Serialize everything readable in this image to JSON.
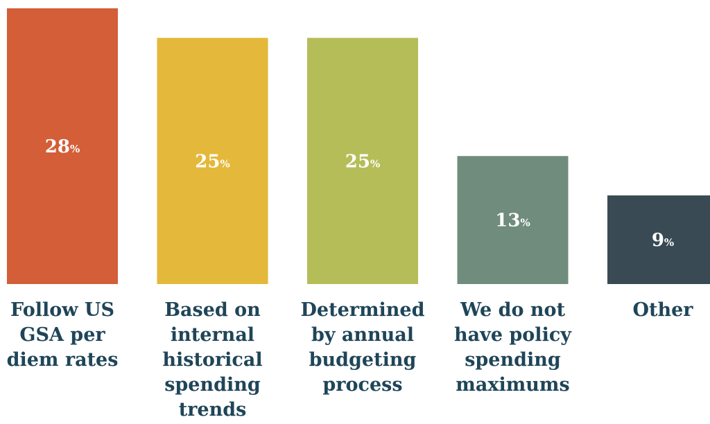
{
  "chart_data": {
    "type": "bar",
    "categories": [
      "Follow US\nGSA per\ndiem rates",
      "Based on\ninternal\nhistorical\nspending\ntrends",
      "Determined\nby annual\nbudgeting\nprocess",
      "We do not\nhave policy\nspending\nmaximums",
      "Other"
    ],
    "values": [
      28,
      25,
      25,
      13,
      9
    ],
    "value_labels": [
      "28",
      "25",
      "25",
      "13",
      "9"
    ],
    "value_suffix": "%",
    "colors": [
      "#d35e38",
      "#e4b83a",
      "#b5bd58",
      "#6f8c7c",
      "#394a54"
    ],
    "label_color": "#1f4558",
    "ylim": [
      0,
      28
    ],
    "grid": false,
    "title": "",
    "xlabel": "",
    "ylabel": ""
  }
}
